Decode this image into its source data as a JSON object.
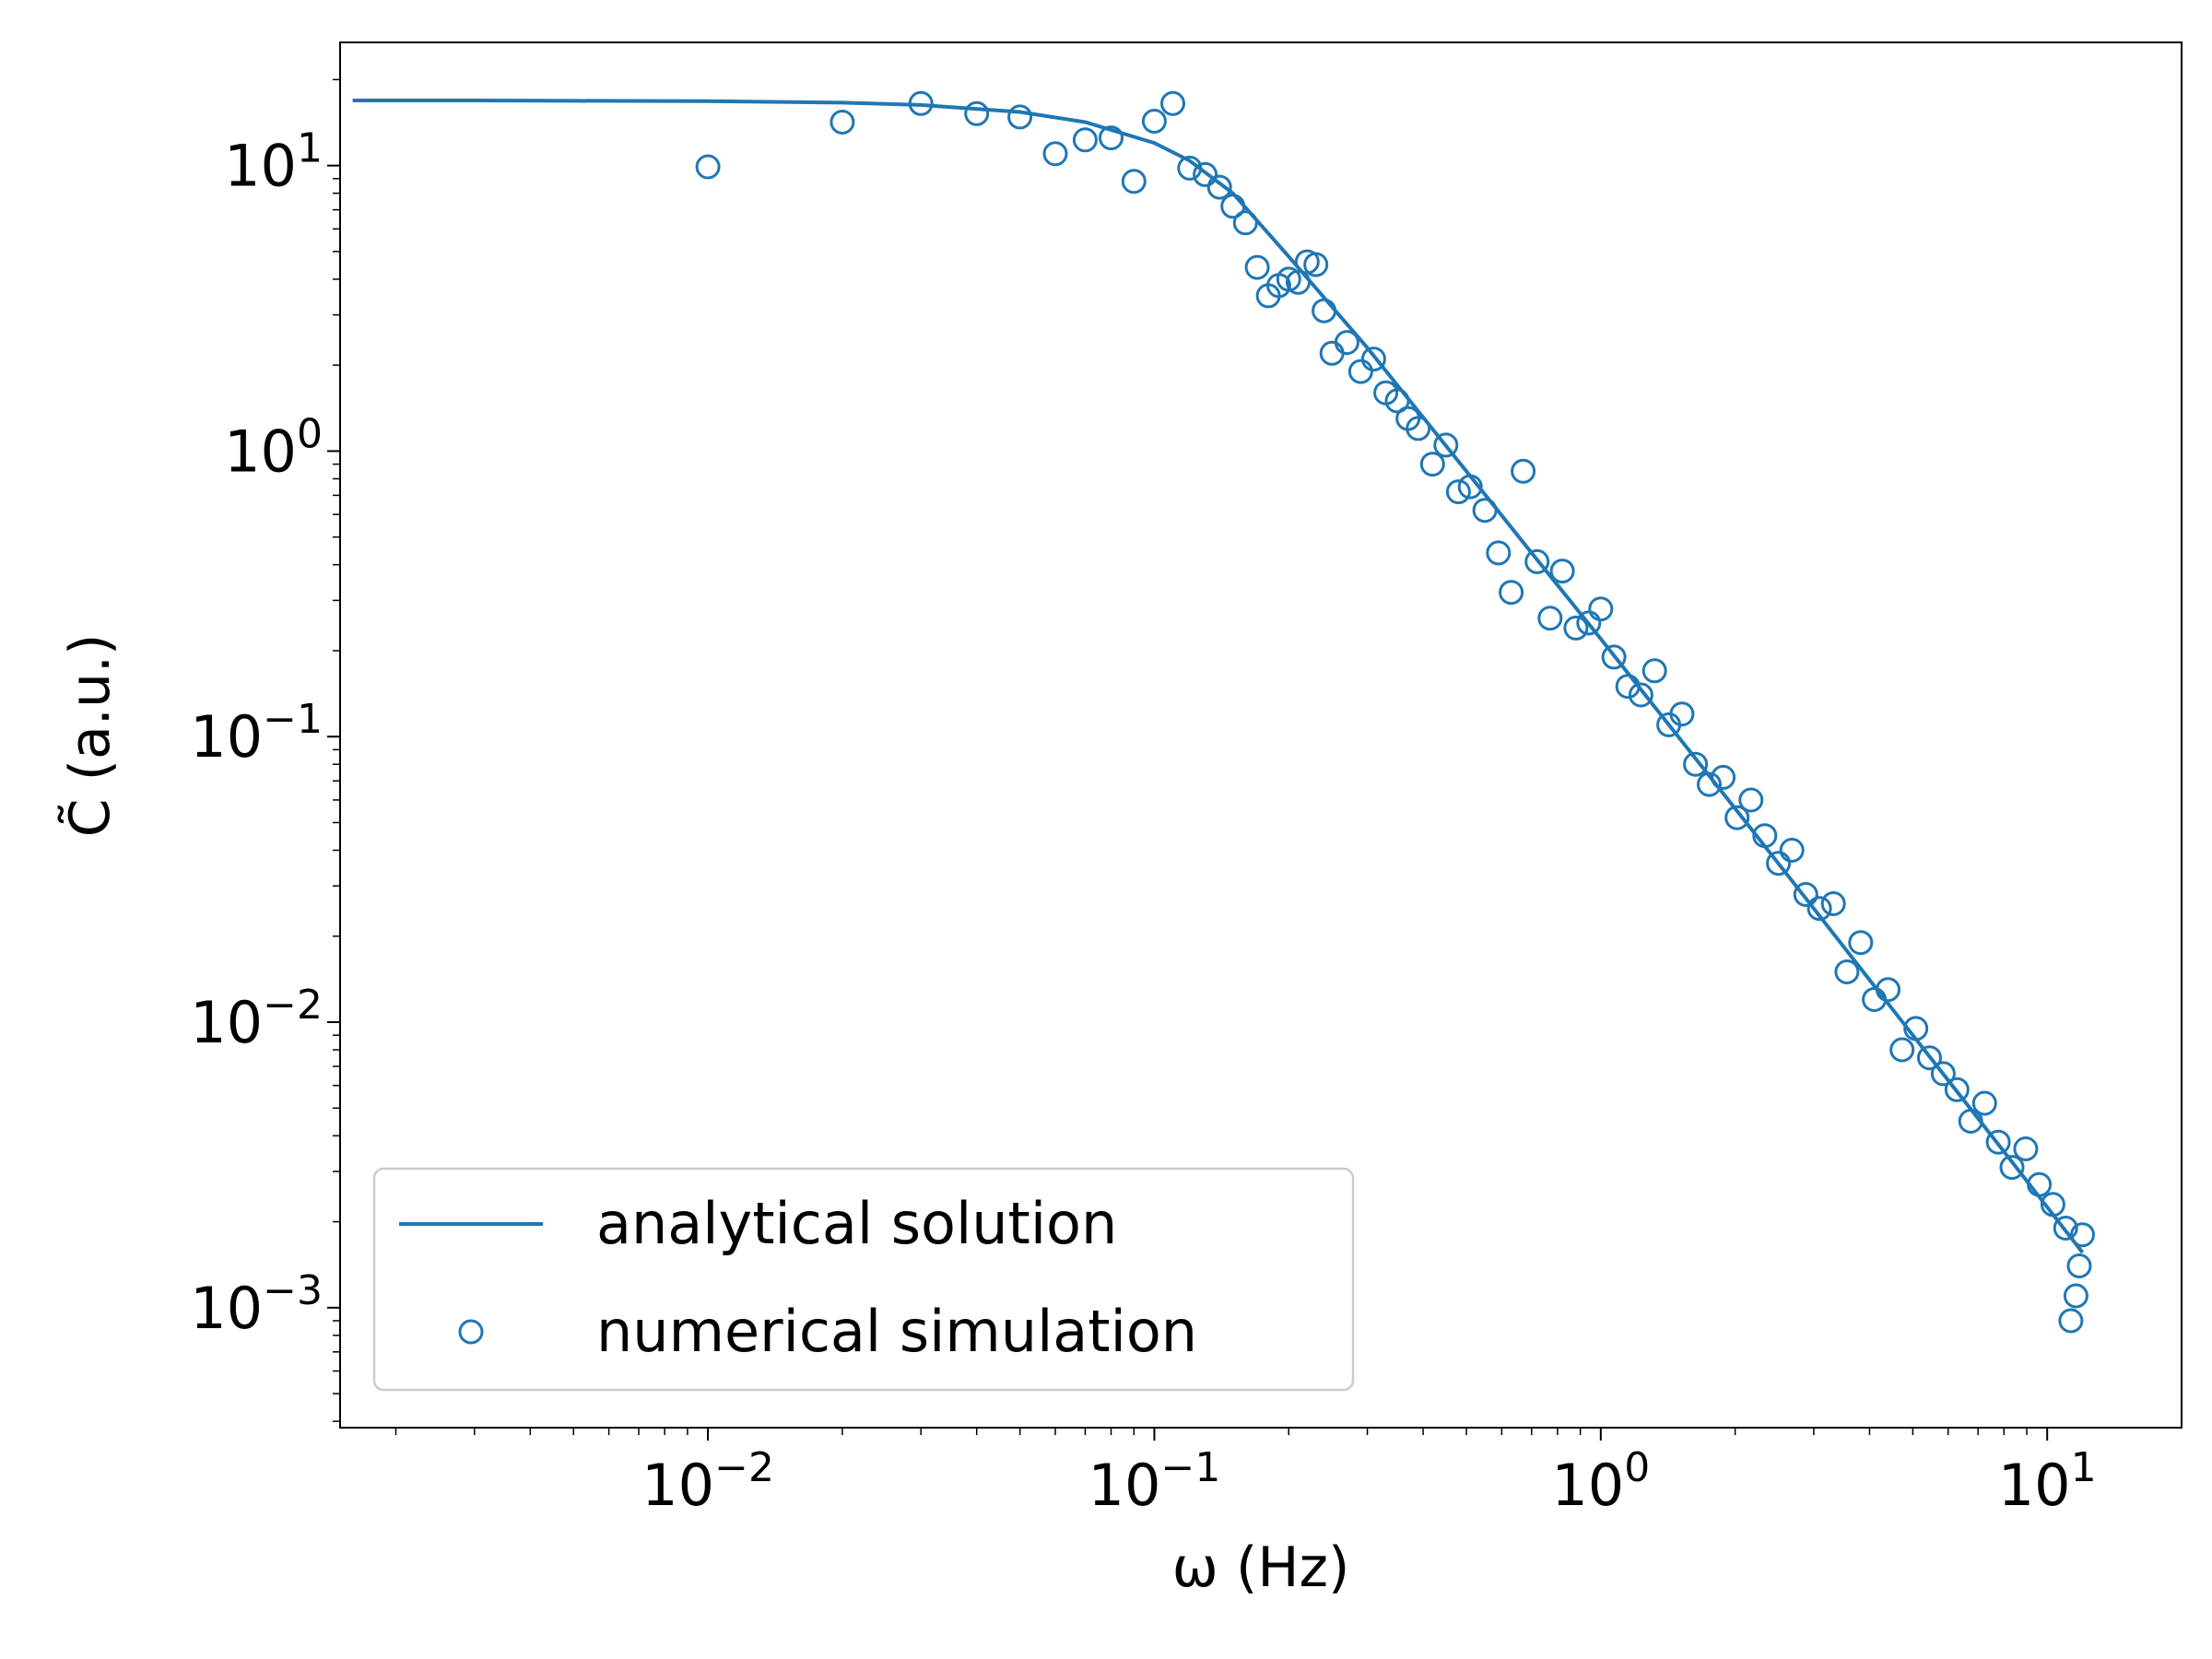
{
  "chart_data": {
    "type": "scatter",
    "title": "",
    "xlabel": "ω (Hz)",
    "ylabel": "C̃ (a.u.)",
    "xscale": "log",
    "yscale": "log",
    "xlim": [
      0.0015,
      20
    ],
    "ylim": [
      0.00038,
      27
    ],
    "x_ticks": [
      {
        "value": 0.01,
        "base": "10",
        "exp": "−2"
      },
      {
        "value": 0.1,
        "base": "10",
        "exp": "−1"
      },
      {
        "value": 1,
        "base": "10",
        "exp": "0"
      },
      {
        "value": 10,
        "base": "10",
        "exp": "1"
      }
    ],
    "y_ticks": [
      {
        "value": 0.001,
        "base": "10",
        "exp": "−3"
      },
      {
        "value": 0.01,
        "base": "10",
        "exp": "−2"
      },
      {
        "value": 0.1,
        "base": "10",
        "exp": "−1"
      },
      {
        "value": 1,
        "base": "10",
        "exp": "0"
      },
      {
        "value": 10,
        "base": "10",
        "exp": "1"
      }
    ],
    "grid": false,
    "legend": {
      "placement": "lower-left",
      "entries": [
        {
          "label": "analytical solution",
          "marker": "line"
        },
        {
          "label": "numerical simulation",
          "marker": "open-circle"
        }
      ]
    },
    "colors": {
      "series": "#1f77b4",
      "axis": "#000000",
      "legend_border": "#cccccc"
    },
    "series": [
      {
        "name": "analytical solution",
        "kind": "line",
        "x": [
          0.0016,
          0.003,
          0.005,
          0.01,
          0.02,
          0.03,
          0.05,
          0.07,
          0.1,
          0.12,
          0.15,
          0.2,
          0.3,
          0.5,
          0.7,
          1,
          2,
          3,
          5,
          7,
          10,
          12
        ],
        "y": [
          16.9,
          16.9,
          16.85,
          16.8,
          16.6,
          16.3,
          15.4,
          14.2,
          12.0,
          10.4,
          8.0,
          4.8,
          2.3,
          0.85,
          0.44,
          0.22,
          0.056,
          0.025,
          0.009,
          0.0046,
          0.00225,
          0.00156
        ]
      },
      {
        "name": "numerical simulation",
        "kind": "scatter",
        "x": [
          0.01,
          0.02,
          0.03,
          0.04,
          0.05,
          0.06,
          0.07,
          0.08,
          0.09,
          0.1,
          0.11,
          0.12,
          0.13,
          0.14,
          0.15,
          0.16,
          0.17,
          0.18,
          0.19,
          0.2,
          0.21,
          0.22,
          0.23,
          0.24,
          0.25,
          0.27,
          0.29,
          0.31,
          0.33,
          0.35,
          0.37,
          0.39,
          0.42,
          0.45,
          0.48,
          0.51,
          0.55,
          0.59,
          0.63,
          0.67,
          0.72,
          0.77,
          0.82,
          0.88,
          0.94,
          1.0,
          1.07,
          1.15,
          1.23,
          1.32,
          1.42,
          1.52,
          1.63,
          1.75,
          1.88,
          2.02,
          2.17,
          2.33,
          2.5,
          2.68,
          2.88,
          3.09,
          3.32,
          3.56,
          3.82,
          4.1,
          4.4,
          4.73,
          5.08,
          5.45,
          5.85,
          6.28,
          6.74,
          7.24,
          7.77,
          8.34,
          8.95,
          9.6,
          10.3,
          11.0,
          11.3,
          11.6,
          11.8,
          12.0
        ],
        "y": [
          9.9,
          14.2,
          16.5,
          15.2,
          14.8,
          11.0,
          12.3,
          12.5,
          8.8,
          14.3,
          16.5,
          9.8,
          9.3,
          8.4,
          7.2,
          6.3,
          4.4,
          3.5,
          3.8,
          4.0,
          3.9,
          4.6,
          4.5,
          3.1,
          2.2,
          2.4,
          1.9,
          2.1,
          1.6,
          1.5,
          1.3,
          1.2,
          0.9,
          1.05,
          0.72,
          0.75,
          0.62,
          0.44,
          0.32,
          0.85,
          0.41,
          0.26,
          0.38,
          0.24,
          0.25,
          0.28,
          0.19,
          0.15,
          0.14,
          0.17,
          0.11,
          0.12,
          0.08,
          0.068,
          0.072,
          0.052,
          0.06,
          0.045,
          0.036,
          0.04,
          0.028,
          0.025,
          0.026,
          0.015,
          0.019,
          0.012,
          0.013,
          0.008,
          0.0095,
          0.0075,
          0.0066,
          0.0058,
          0.0045,
          0.0052,
          0.0038,
          0.0031,
          0.0036,
          0.0027,
          0.0023,
          0.0019,
          0.0009,
          0.0011,
          0.0014,
          0.0018
        ]
      }
    ]
  }
}
